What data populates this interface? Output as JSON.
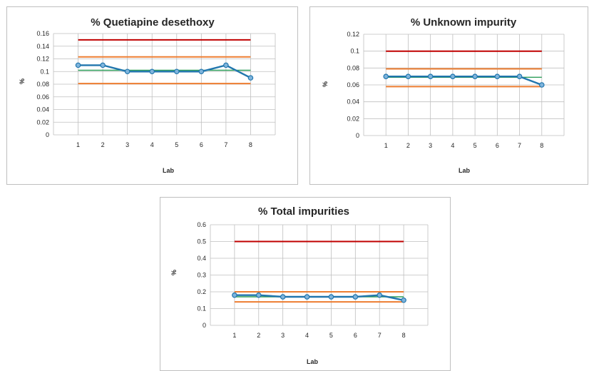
{
  "colors": {
    "upper_limit": "#c00000",
    "control_limit": "#ed7d31",
    "mean": "#2e9e5a",
    "results": "#2176ae",
    "grid": "#bfbfbf"
  },
  "chart_data": [
    {
      "type": "line",
      "title": "% Quetiapine desethoxy",
      "xlabel": "Lab",
      "ylabel": "%",
      "categories": [
        "1",
        "2",
        "3",
        "4",
        "5",
        "6",
        "7",
        "8"
      ],
      "ylim": [
        0,
        0.16
      ],
      "yticks": [
        "0",
        "0.02",
        "0.04",
        "0.06",
        "0.08",
        "0.1",
        "0.12",
        "0.14",
        "0.16"
      ],
      "grid": true,
      "series": [
        {
          "role": "upper_limit",
          "values": [
            0.15,
            0.15,
            0.15,
            0.15,
            0.15,
            0.15,
            0.15,
            0.15
          ]
        },
        {
          "role": "control_upper",
          "values": [
            0.123,
            0.123,
            0.123,
            0.123,
            0.123,
            0.123,
            0.123,
            0.123
          ]
        },
        {
          "role": "mean",
          "values": [
            0.102,
            0.102,
            0.102,
            0.102,
            0.102,
            0.102,
            0.102,
            0.102
          ]
        },
        {
          "role": "control_lower",
          "values": [
            0.081,
            0.081,
            0.081,
            0.081,
            0.081,
            0.081,
            0.081,
            0.081
          ]
        },
        {
          "role": "results",
          "values": [
            0.11,
            0.11,
            0.1,
            0.1,
            0.1,
            0.1,
            0.11,
            0.09
          ]
        }
      ]
    },
    {
      "type": "line",
      "title": "% Unknown impurity",
      "xlabel": "Lab",
      "ylabel": "%",
      "categories": [
        "1",
        "2",
        "3",
        "4",
        "5",
        "6",
        "7",
        "8"
      ],
      "ylim": [
        0,
        0.12
      ],
      "yticks": [
        "0",
        "0.02",
        "0.04",
        "0.06",
        "0.08",
        "0.1",
        "0.12"
      ],
      "grid": true,
      "series": [
        {
          "role": "upper_limit",
          "values": [
            0.1,
            0.1,
            0.1,
            0.1,
            0.1,
            0.1,
            0.1,
            0.1
          ]
        },
        {
          "role": "control_upper",
          "values": [
            0.079,
            0.079,
            0.079,
            0.079,
            0.079,
            0.079,
            0.079,
            0.079
          ]
        },
        {
          "role": "mean",
          "values": [
            0.069,
            0.069,
            0.069,
            0.069,
            0.069,
            0.069,
            0.069,
            0.069
          ]
        },
        {
          "role": "control_lower",
          "values": [
            0.058,
            0.058,
            0.058,
            0.058,
            0.058,
            0.058,
            0.058,
            0.058
          ]
        },
        {
          "role": "results",
          "values": [
            0.07,
            0.07,
            0.07,
            0.07,
            0.07,
            0.07,
            0.07,
            0.06
          ]
        }
      ]
    },
    {
      "type": "line",
      "title": "% Total impurities",
      "xlabel": "Lab",
      "ylabel": "%",
      "categories": [
        "1",
        "2",
        "3",
        "4",
        "5",
        "6",
        "7",
        "8"
      ],
      "ylim": [
        0,
        0.6
      ],
      "yticks": [
        "0",
        "0.1",
        "0.2",
        "0.3",
        "0.4",
        "0.5",
        "0.6"
      ],
      "grid": true,
      "series": [
        {
          "role": "upper_limit",
          "values": [
            0.5,
            0.5,
            0.5,
            0.5,
            0.5,
            0.5,
            0.5,
            0.5
          ]
        },
        {
          "role": "control_upper",
          "values": [
            0.2,
            0.2,
            0.2,
            0.2,
            0.2,
            0.2,
            0.2,
            0.2
          ]
        },
        {
          "role": "mean",
          "values": [
            0.17,
            0.17,
            0.17,
            0.17,
            0.17,
            0.17,
            0.17,
            0.17
          ]
        },
        {
          "role": "control_lower",
          "values": [
            0.14,
            0.14,
            0.14,
            0.14,
            0.14,
            0.14,
            0.14,
            0.14
          ]
        },
        {
          "role": "results",
          "values": [
            0.18,
            0.18,
            0.17,
            0.17,
            0.17,
            0.17,
            0.18,
            0.15
          ]
        }
      ]
    }
  ]
}
